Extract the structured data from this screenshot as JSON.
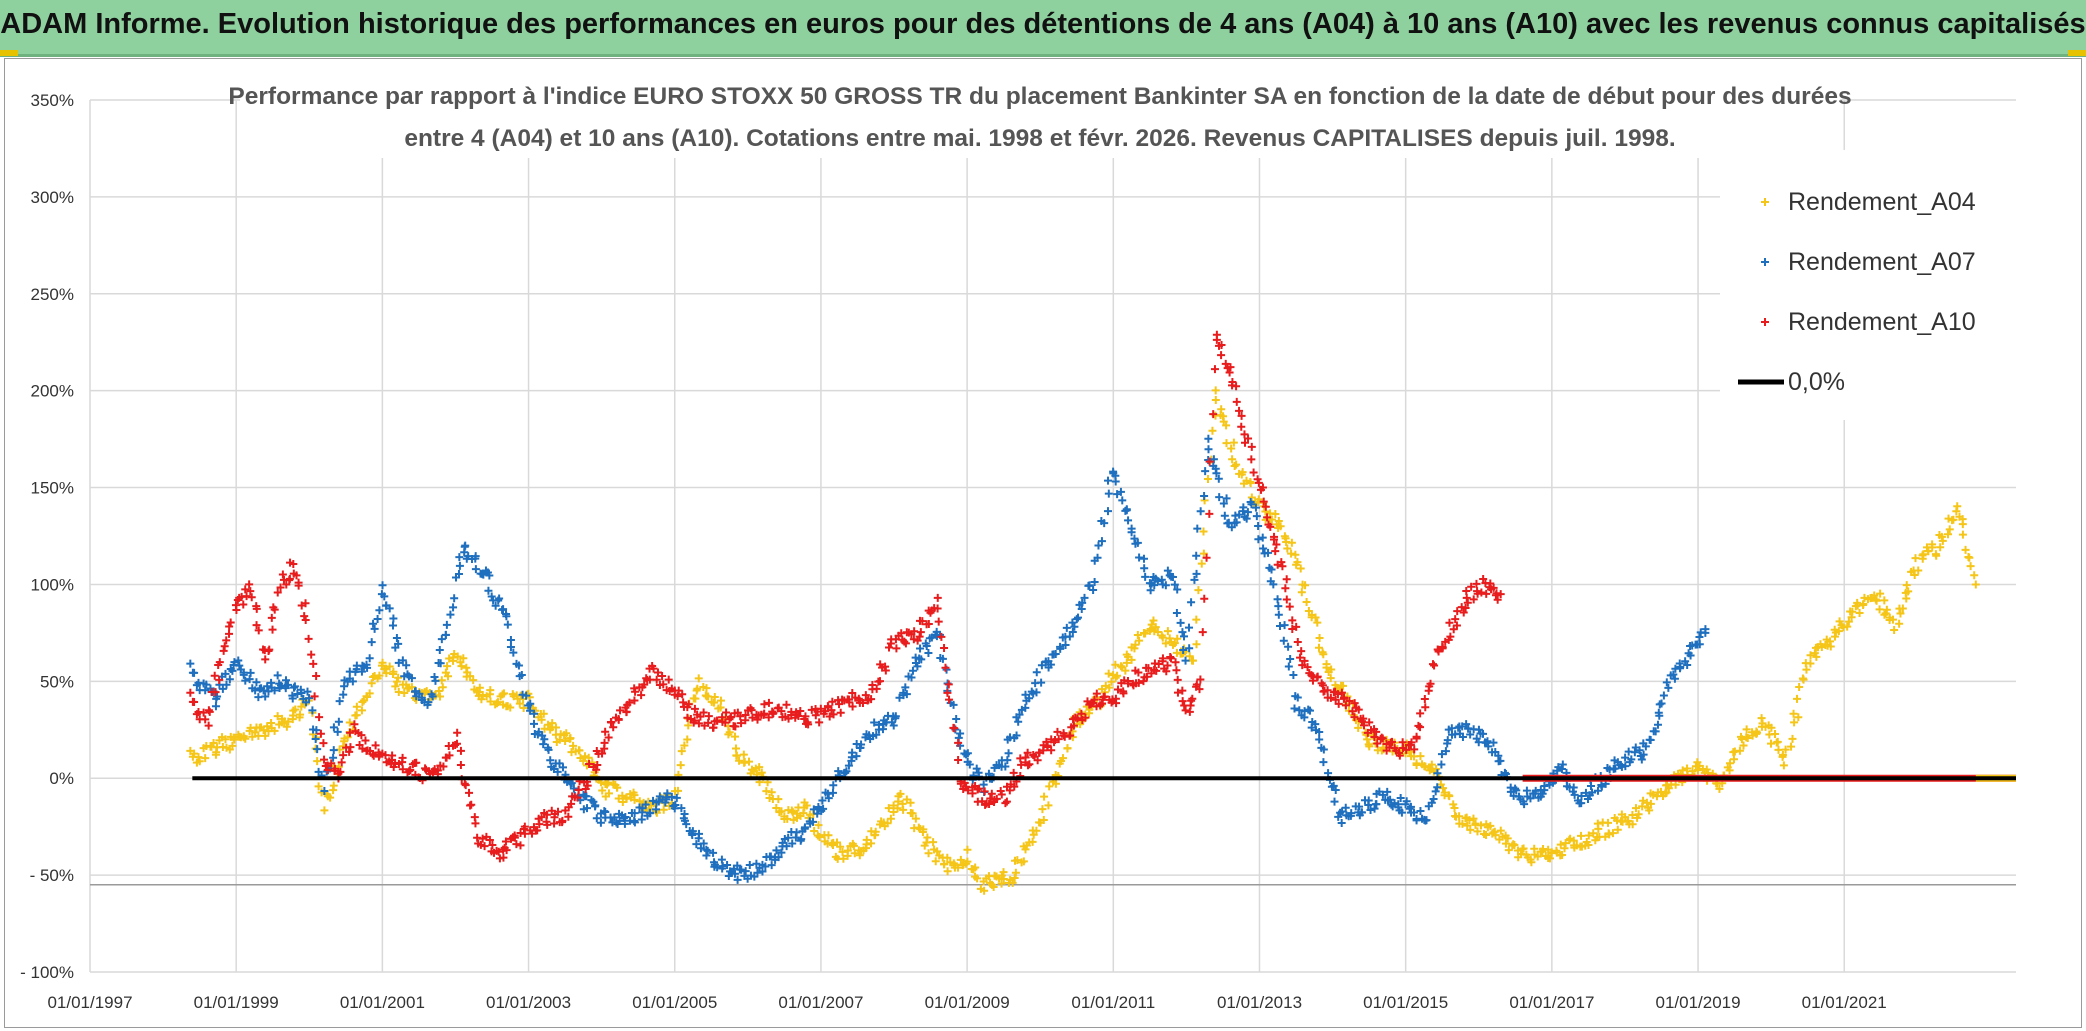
{
  "header": {
    "banner_title": "ADAM Informe. Evolution historique des performances en euros pour des détentions de 4 ans (A04) à 10 ans (A10) avec les revenus connus capitalisés"
  },
  "chart_data": {
    "type": "scatter",
    "title_lines": [
      "Performance par rapport à l'indice EURO STOXX 50 GROSS TR  du placement Bankinter SA en fonction de la date de début pour des durées",
      "entre 4 (A04) et 10 ans (A10). Cotations entre mai. 1998 et févr. 2026. Revenus CAPITALISES depuis juil. 1998."
    ],
    "xlabel": "",
    "ylabel": "",
    "x_range": [
      1997.0,
      2023.35
    ],
    "ylim": [
      -100,
      350
    ],
    "grid": true,
    "x_tick_labels": [
      "01/01/1997",
      "01/01/1999",
      "01/01/2001",
      "01/01/2003",
      "01/01/2005",
      "01/01/2007",
      "01/01/2009",
      "01/01/2011",
      "01/01/2013",
      "01/01/2015",
      "01/01/2017",
      "01/01/2019",
      "01/01/2021"
    ],
    "x_tick_values": [
      1997,
      1999,
      2001,
      2003,
      2005,
      2007,
      2009,
      2011,
      2013,
      2015,
      2017,
      2019,
      2021
    ],
    "y_tick_labels": [
      "350%",
      "300%",
      "250%",
      "200%",
      "150%",
      "100%",
      "50%",
      "0%",
      "- 50%",
      "- 100%"
    ],
    "y_tick_values": [
      350,
      300,
      250,
      200,
      150,
      100,
      50,
      0,
      -50,
      -100
    ],
    "legend": {
      "placement": "top-right",
      "entries": [
        "Rendement_A04",
        "Rendement_A07",
        "Rendement_A10",
        "0,0%"
      ]
    },
    "series": [
      {
        "name": "Rendement_A04",
        "color": "#f5c518",
        "x": [
          1998.4,
          1998.7,
          1999.0,
          1999.3,
          1999.7,
          2000.0,
          2000.2,
          2000.5,
          2000.8,
          2001.0,
          2001.3,
          2001.7,
          2002.0,
          2002.3,
          2002.6,
          2003.0,
          2003.3,
          2003.7,
          2004.0,
          2004.4,
          2004.7,
          2005.0,
          2005.3,
          2005.6,
          2005.9,
          2006.2,
          2006.5,
          2006.8,
          2007.0,
          2007.3,
          2007.6,
          2007.9,
          2008.1,
          2008.4,
          2008.7,
          2009.0,
          2009.2,
          2009.6,
          2009.9,
          2010.2,
          2010.5,
          2010.8,
          2011.0,
          2011.2,
          2011.5,
          2011.8,
          2012.1,
          2012.4,
          2012.7,
          2013.0,
          2013.3,
          2013.6,
          2013.9,
          2014.2,
          2014.5,
          2014.8,
          2015.0,
          2015.4,
          2015.7,
          2016.0,
          2016.3,
          2016.6,
          2016.9,
          2017.2,
          2017.5,
          2017.8,
          2018.1,
          2018.4,
          2018.7,
          2019.0,
          2019.3,
          2019.6,
          2019.9,
          2020.2,
          2020.5,
          2020.8,
          2021.1,
          2021.4,
          2021.7,
          2022.0,
          2022.3,
          2022.55,
          2022.8
        ],
        "values": [
          10,
          15,
          20,
          25,
          30,
          40,
          -15,
          20,
          45,
          60,
          45,
          40,
          65,
          45,
          40,
          40,
          25,
          15,
          -5,
          -10,
          -15,
          -10,
          50,
          40,
          10,
          0,
          -20,
          -15,
          -30,
          -40,
          -35,
          -20,
          -10,
          -30,
          -45,
          -40,
          -55,
          -50,
          -30,
          0,
          30,
          40,
          55,
          60,
          80,
          70,
          60,
          200,
          160,
          140,
          130,
          100,
          60,
          40,
          20,
          15,
          15,
          5,
          -20,
          -25,
          -30,
          -40,
          -40,
          -35,
          -30,
          -25,
          -20,
          -10,
          0,
          5,
          -5,
          20,
          30,
          10,
          60,
          70,
          85,
          95,
          80,
          110,
          120,
          140,
          100
        ]
      },
      {
        "name": "Rendement_A07",
        "color": "#1f6fbf",
        "x": [
          1998.4,
          1998.7,
          1999.0,
          1999.3,
          1999.6,
          2000.0,
          2000.2,
          2000.5,
          2000.8,
          2001.0,
          2001.3,
          2001.6,
          2001.9,
          2002.1,
          2002.4,
          2002.7,
          2003.0,
          2003.3,
          2003.7,
          2004.0,
          2004.4,
          2004.7,
          2005.0,
          2005.3,
          2005.6,
          2005.9,
          2006.2,
          2006.5,
          2006.8,
          2007.1,
          2007.4,
          2007.7,
          2008.0,
          2008.3,
          2008.6,
          2008.9,
          2009.2,
          2009.5,
          2009.8,
          2010.1,
          2010.4,
          2010.7,
          2011.0,
          2011.2,
          2011.5,
          2011.8,
          2012.0,
          2012.3,
          2012.6,
          2012.9,
          2013.2,
          2013.5,
          2013.8,
          2014.1,
          2014.4,
          2014.7,
          2015.0,
          2015.3,
          2015.6,
          2015.9,
          2016.2,
          2016.5,
          2016.8,
          2017.1,
          2017.4,
          2017.7,
          2018.0,
          2018.3,
          2018.6,
          2018.9,
          2019.1
        ],
        "values": [
          55,
          40,
          60,
          45,
          50,
          40,
          -5,
          50,
          60,
          100,
          55,
          35,
          80,
          120,
          105,
          80,
          35,
          10,
          -10,
          -20,
          -20,
          -15,
          -10,
          -30,
          -45,
          -50,
          -45,
          -35,
          -25,
          -10,
          10,
          25,
          30,
          60,
          75,
          20,
          -5,
          10,
          40,
          60,
          75,
          100,
          160,
          135,
          100,
          105,
          60,
          175,
          130,
          140,
          100,
          40,
          25,
          -20,
          -15,
          -10,
          -15,
          -20,
          25,
          25,
          15,
          -10,
          -10,
          5,
          -10,
          0,
          10,
          15,
          50,
          65,
          75
        ]
      },
      {
        "name": "Rendement_A10",
        "color": "#e81c1c",
        "x": [
          1998.4,
          1998.6,
          1998.8,
          1999.0,
          1999.2,
          1999.4,
          1999.6,
          1999.8,
          2000.0,
          2000.2,
          2000.4,
          2000.6,
          2000.8,
          2001.1,
          2001.4,
          2001.7,
          2002.0,
          2002.3,
          2002.6,
          2002.9,
          2003.2,
          2003.5,
          2003.8,
          2004.1,
          2004.4,
          2004.7,
          2005.0,
          2005.3,
          2005.6,
          2005.9,
          2006.2,
          2006.5,
          2006.8,
          2007.1,
          2007.4,
          2007.7,
          2008.0,
          2008.3,
          2008.6,
          2008.9,
          2009.2,
          2009.5,
          2009.8,
          2010.1,
          2010.4,
          2010.7,
          2011.0,
          2011.2,
          2011.5,
          2011.8,
          2012.0,
          2012.2,
          2012.4,
          2012.6,
          2012.8,
          2013.0,
          2013.3,
          2013.6,
          2013.9,
          2014.2,
          2014.5,
          2014.8,
          2015.1,
          2015.4,
          2015.7,
          2016.0,
          2016.3
        ],
        "values": [
          40,
          30,
          60,
          90,
          100,
          60,
          100,
          110,
          75,
          10,
          0,
          25,
          15,
          10,
          5,
          0,
          20,
          -30,
          -40,
          -30,
          -20,
          -20,
          0,
          25,
          40,
          55,
          45,
          30,
          30,
          30,
          35,
          35,
          30,
          35,
          40,
          45,
          70,
          75,
          90,
          0,
          -10,
          -10,
          10,
          15,
          25,
          40,
          40,
          50,
          55,
          60,
          35,
          50,
          230,
          210,
          180,
          150,
          110,
          60,
          45,
          40,
          25,
          15,
          15,
          60,
          85,
          100,
          95
        ]
      },
      {
        "name": "Rendement_A10_zero_tail",
        "color": "#e81c1c",
        "x": [
          2016.6,
          2023.35
        ],
        "values": [
          0,
          0
        ]
      },
      {
        "name": "Rendement_A04_zero_tail",
        "color": "#f5c518",
        "x": [
          2022.8,
          2023.35
        ],
        "values": [
          0,
          0
        ]
      },
      {
        "name": "0,0%",
        "color": "#000000",
        "x": [
          1998.4,
          2023.35
        ],
        "values": [
          0,
          0
        ]
      }
    ]
  }
}
